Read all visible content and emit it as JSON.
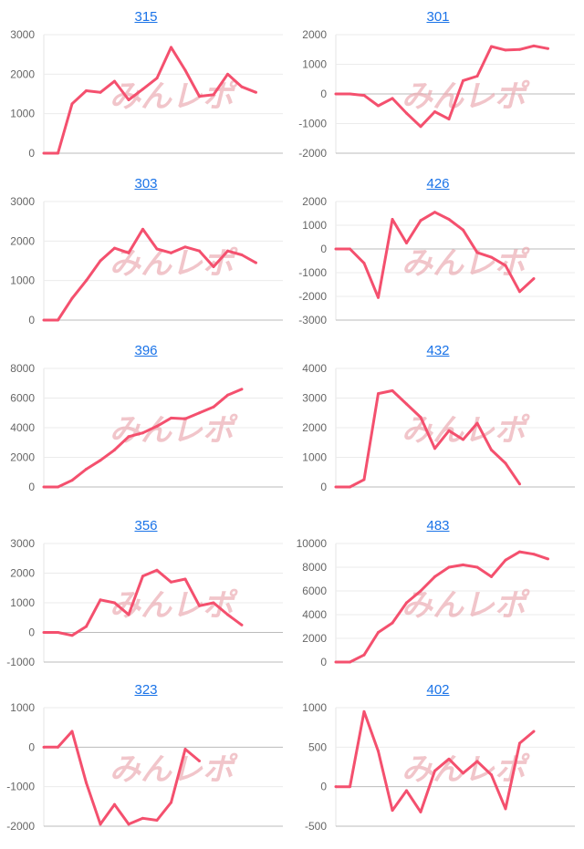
{
  "line_color": "#f4506e",
  "title_color": "#1a73e8",
  "watermark": "みんレポ",
  "chart_data": [
    {
      "type": "line",
      "title": "315",
      "ylim": [
        0,
        3000
      ],
      "yticks": [
        0,
        1000,
        2000,
        3000
      ],
      "grid": true,
      "values": [
        0,
        0,
        1250,
        1580,
        1540,
        1820,
        1350,
        1620,
        1900,
        2680,
        2100,
        1440,
        1480,
        2000,
        1680,
        1540
      ]
    },
    {
      "type": "line",
      "title": "301",
      "ylim": [
        -2000,
        2000
      ],
      "yticks": [
        -2000,
        -1000,
        0,
        1000,
        2000
      ],
      "grid": true,
      "values": [
        0,
        0,
        -50,
        -400,
        -150,
        -650,
        -1100,
        -600,
        -850,
        450,
        600,
        1600,
        1480,
        1500,
        1620,
        1530
      ]
    },
    {
      "type": "line",
      "title": "303",
      "ylim": [
        0,
        3000
      ],
      "yticks": [
        0,
        1000,
        2000,
        3000
      ],
      "grid": true,
      "values": [
        0,
        0,
        550,
        1000,
        1500,
        1820,
        1700,
        2300,
        1800,
        1700,
        1850,
        1750,
        1350,
        1750,
        1650,
        1450
      ]
    },
    {
      "type": "line",
      "title": "426",
      "ylim": [
        -3000,
        2000
      ],
      "yticks": [
        -3000,
        -2000,
        -1000,
        0,
        1000,
        2000
      ],
      "grid": true,
      "values": [
        0,
        0,
        -600,
        -2050,
        1250,
        250,
        1200,
        1550,
        1250,
        800,
        -150,
        -350,
        -700,
        -1800,
        -1250
      ]
    },
    {
      "type": "line",
      "title": "396",
      "ylim": [
        0,
        8000
      ],
      "yticks": [
        0,
        2000,
        4000,
        6000,
        8000
      ],
      "grid": true,
      "values": [
        0,
        0,
        450,
        1200,
        1800,
        2500,
        3400,
        3650,
        4100,
        4650,
        4600,
        5000,
        5400,
        6200,
        6600
      ]
    },
    {
      "type": "line",
      "title": "432",
      "ylim": [
        0,
        4000
      ],
      "yticks": [
        0,
        1000,
        2000,
        3000,
        4000
      ],
      "grid": true,
      "values": [
        0,
        0,
        250,
        3150,
        3250,
        2800,
        2350,
        1300,
        1900,
        1600,
        2150,
        1250,
        800,
        100
      ]
    },
    {
      "type": "line",
      "title": "356",
      "ylim": [
        -1000,
        3000
      ],
      "yticks": [
        -1000,
        0,
        1000,
        2000,
        3000
      ],
      "grid": true,
      "values": [
        0,
        0,
        -100,
        200,
        1100,
        1000,
        600,
        1900,
        2100,
        1700,
        1800,
        900,
        1000,
        600,
        250
      ]
    },
    {
      "type": "line",
      "title": "483",
      "ylim": [
        0,
        10000
      ],
      "yticks": [
        0,
        2000,
        4000,
        6000,
        8000,
        10000
      ],
      "grid": true,
      "values": [
        0,
        0,
        600,
        2500,
        3300,
        5000,
        6000,
        7200,
        8000,
        8200,
        8000,
        7200,
        8600,
        9300,
        9100,
        8700
      ]
    },
    {
      "type": "line",
      "title": "323",
      "ylim": [
        -2000,
        1000
      ],
      "yticks": [
        -2000,
        -1000,
        0,
        1000
      ],
      "grid": true,
      "values": [
        0,
        0,
        400,
        -900,
        -1950,
        -1450,
        -1950,
        -1800,
        -1850,
        -1400,
        -50,
        -350
      ]
    },
    {
      "type": "line",
      "title": "402",
      "ylim": [
        -500,
        1000
      ],
      "yticks": [
        -500,
        0,
        500,
        1000
      ],
      "grid": true,
      "values": [
        0,
        0,
        950,
        450,
        -300,
        -50,
        -320,
        200,
        350,
        170,
        320,
        150,
        -280,
        550,
        700
      ]
    }
  ]
}
